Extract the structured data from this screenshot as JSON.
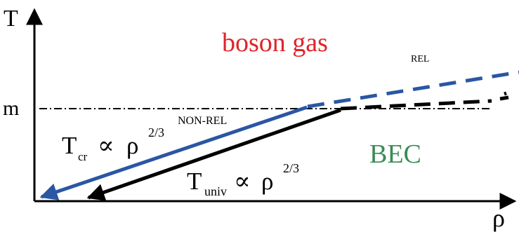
{
  "axes": {
    "y_label": "T",
    "x_label": "ρ",
    "y_tick_label": "m"
  },
  "regions": {
    "upper_label": "boson gas",
    "lower_label": "BEC",
    "rel_label": "REL",
    "nonrel_label": "NON-REL"
  },
  "formulas": {
    "critical": {
      "symbol": "T",
      "subscript": "cr",
      "relation": "∝",
      "variable": "ρ",
      "exponent": "2/3"
    },
    "universal": {
      "symbol": "T",
      "subscript": "univ",
      "relation": "∝",
      "variable": "ρ",
      "exponent": "2/3"
    }
  },
  "colors": {
    "axis": "#000000",
    "critical_line": "#2a56a4",
    "universal_line": "#000000",
    "boson_gas_text": "#e0242a",
    "bec_text": "#3a8b57",
    "reference_line": "#000000"
  }
}
